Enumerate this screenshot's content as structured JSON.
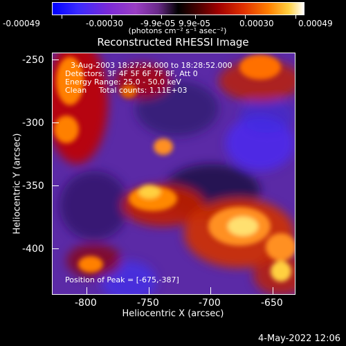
{
  "colorbar": {
    "tick_labels": [
      "-0.00049",
      "-0.00030",
      "-9.9e-05",
      "9.9e-05",
      "0.00030",
      "0.00049"
    ],
    "units": "(photons cm⁻² s⁻¹ asec⁻²)"
  },
  "plot": {
    "title": "Reconstructed RHESSI Image",
    "xlabel": "Heliocentric X (arcsec)",
    "ylabel": "Heliocentric Y (arcsec)",
    "x_ticks": [
      "-800",
      "-750",
      "-700",
      "-650"
    ],
    "y_ticks": [
      "-250",
      "-300",
      "-350",
      "-400"
    ],
    "info_lines": [
      "3-Aug-2003 18:27:24.000 to 18:28:52.000",
      "Detectors: 3F 4F 5F 6F 7F 8F, Att 0",
      "Energy Range: 25.0 - 50.0 keV",
      "Clean     Total counts: 1.11E+03"
    ],
    "peak_text": "Position of Peak = [-675,-387]"
  },
  "footer": {
    "date": "4-May-2022 12:06"
  }
}
